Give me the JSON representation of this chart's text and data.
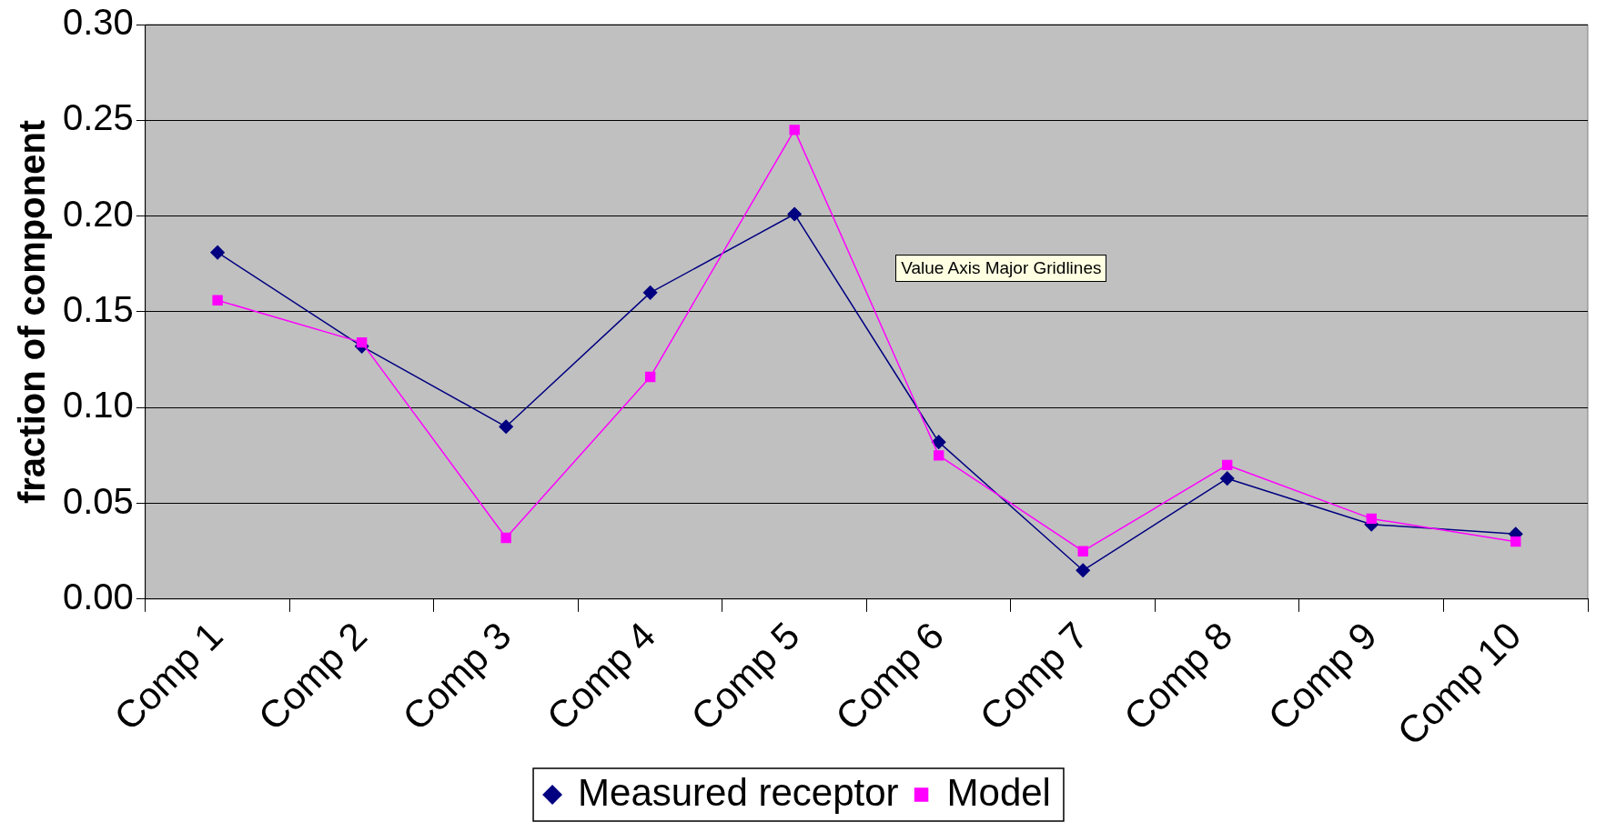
{
  "chart_data": {
    "type": "line",
    "ylabel": "fraction of component",
    "categories": [
      "Comp 1",
      "Comp 2",
      "Comp 3",
      "Comp 4",
      "Comp 5",
      "Comp 6",
      "Comp 7",
      "Comp 8",
      "Comp 9",
      "Comp 10"
    ],
    "series": [
      {
        "name": "Measured receptor",
        "color": "#000080",
        "marker": "diamond",
        "values": [
          0.181,
          0.132,
          0.09,
          0.16,
          0.201,
          0.082,
          0.015,
          0.063,
          0.039,
          0.034
        ]
      },
      {
        "name": "Model",
        "color": "#ff00ff",
        "marker": "square",
        "values": [
          0.156,
          0.134,
          0.032,
          0.116,
          0.245,
          0.075,
          0.025,
          0.07,
          0.042,
          0.03
        ]
      }
    ],
    "ylim": [
      0,
      0.3
    ],
    "yticks": [
      {
        "value": 0,
        "label": "0.00"
      },
      {
        "value": 0.05,
        "label": "0.05"
      },
      {
        "value": 0.1,
        "label": "0.10"
      },
      {
        "value": 0.15,
        "label": "0.15"
      },
      {
        "value": 0.2,
        "label": "0.20"
      },
      {
        "value": 0.25,
        "label": "0.25"
      },
      {
        "value": 0.3,
        "label": "0.30"
      }
    ],
    "grid": "y",
    "legend": "bottom",
    "line_style": "solid",
    "annotations": [
      "Value Axis Major Gridlines"
    ]
  }
}
